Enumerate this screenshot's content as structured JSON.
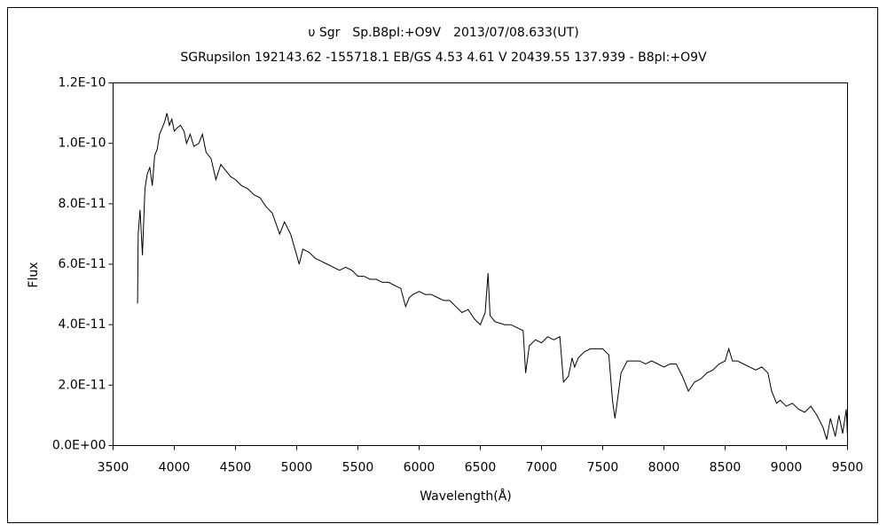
{
  "chart_data": {
    "type": "line",
    "title": "υ Sgr　Sp.B8pI:+O9V　2013/07/08.633(UT)",
    "subtitle": "SGRupsilon 192143.62 -155718.1 EB/GS 4.53 4.61 V 20439.55 137.939 - B8pI:+O9V",
    "xlabel": "Wavelength(Å)",
    "ylabel": "Flux",
    "color": "#000000",
    "grid": false,
    "xlim": [
      3500,
      9500
    ],
    "xticks": [
      3500,
      4000,
      4500,
      5000,
      5500,
      6000,
      6500,
      7000,
      7500,
      8000,
      8500,
      9000,
      9500
    ],
    "ylim": [
      0,
      1.2e-10
    ],
    "yticks": [
      {
        "value": 0,
        "label": "0.0E+00"
      },
      {
        "value": 2e-11,
        "label": "2.0E-11"
      },
      {
        "value": 4e-11,
        "label": "4.0E-11"
      },
      {
        "value": 6e-11,
        "label": "6.0E-11"
      },
      {
        "value": 8e-11,
        "label": "8.0E-11"
      },
      {
        "value": 1e-10,
        "label": "1.0E-10"
      },
      {
        "value": 1.2e-10,
        "label": "1.2E-10"
      }
    ],
    "x": [
      3700,
      3705,
      3720,
      3740,
      3760,
      3780,
      3800,
      3820,
      3840,
      3860,
      3880,
      3900,
      3920,
      3940,
      3960,
      3980,
      4000,
      4020,
      4050,
      4080,
      4100,
      4130,
      4160,
      4200,
      4230,
      4260,
      4300,
      4340,
      4380,
      4420,
      4460,
      4500,
      4550,
      4600,
      4650,
      4700,
      4750,
      4800,
      4861,
      4900,
      4950,
      5000,
      5020,
      5050,
      5100,
      5150,
      5200,
      5250,
      5300,
      5350,
      5400,
      5450,
      5500,
      5550,
      5600,
      5650,
      5700,
      5750,
      5800,
      5850,
      5890,
      5920,
      5950,
      6000,
      6050,
      6100,
      6150,
      6200,
      6250,
      6300,
      6350,
      6400,
      6450,
      6500,
      6540,
      6563,
      6580,
      6620,
      6700,
      6750,
      6800,
      6850,
      6870,
      6900,
      6950,
      7000,
      7050,
      7100,
      7150,
      7180,
      7220,
      7250,
      7270,
      7300,
      7350,
      7400,
      7450,
      7500,
      7550,
      7580,
      7600,
      7620,
      7650,
      7700,
      7750,
      7800,
      7850,
      7900,
      7950,
      8000,
      8050,
      8100,
      8150,
      8200,
      8250,
      8300,
      8350,
      8400,
      8450,
      8500,
      8530,
      8560,
      8600,
      8650,
      8700,
      8750,
      8800,
      8850,
      8880,
      8920,
      8950,
      9000,
      9050,
      9100,
      9150,
      9200,
      9250,
      9300,
      9330,
      9360,
      9400,
      9430,
      9460,
      9490,
      9500
    ],
    "values": [
      4.7e-11,
      7e-11,
      7.8e-11,
      6.3e-11,
      8.5e-11,
      9e-11,
      9.2e-11,
      8.6e-11,
      9.6e-11,
      9.8e-11,
      1.03e-10,
      1.05e-10,
      1.07e-10,
      1.1e-10,
      1.06e-10,
      1.08e-10,
      1.04e-10,
      1.05e-10,
      1.06e-10,
      1.04e-10,
      1e-10,
      1.03e-10,
      9.9e-11,
      1e-10,
      1.03e-10,
      9.7e-11,
      9.5e-11,
      8.8e-11,
      9.3e-11,
      9.1e-11,
      8.9e-11,
      8.8e-11,
      8.6e-11,
      8.5e-11,
      8.3e-11,
      8.2e-11,
      7.9e-11,
      7.7e-11,
      7e-11,
      7.4e-11,
      7e-11,
      6.3e-11,
      6e-11,
      6.5e-11,
      6.4e-11,
      6.2e-11,
      6.1e-11,
      6e-11,
      5.9e-11,
      5.8e-11,
      5.9e-11,
      5.8e-11,
      5.6e-11,
      5.6e-11,
      5.5e-11,
      5.5e-11,
      5.4e-11,
      5.4e-11,
      5.3e-11,
      5.2e-11,
      4.6e-11,
      4.9e-11,
      5e-11,
      5.1e-11,
      5e-11,
      5e-11,
      4.9e-11,
      4.8e-11,
      4.8e-11,
      4.6e-11,
      4.4e-11,
      4.5e-11,
      4.2e-11,
      4e-11,
      4.4e-11,
      5.7e-11,
      4.3e-11,
      4.1e-11,
      4e-11,
      4e-11,
      3.9e-11,
      3.8e-11,
      2.4e-11,
      3.3e-11,
      3.5e-11,
      3.4e-11,
      3.6e-11,
      3.5e-11,
      3.6e-11,
      2.1e-11,
      2.3e-11,
      2.9e-11,
      2.6e-11,
      2.9e-11,
      3.1e-11,
      3.2e-11,
      3.2e-11,
      3.2e-11,
      3e-11,
      1.5e-11,
      9e-12,
      1.5e-11,
      2.4e-11,
      2.8e-11,
      2.8e-11,
      2.8e-11,
      2.7e-11,
      2.8e-11,
      2.7e-11,
      2.6e-11,
      2.7e-11,
      2.7e-11,
      2.3e-11,
      1.8e-11,
      2.1e-11,
      2.2e-11,
      2.4e-11,
      2.5e-11,
      2.7e-11,
      2.8e-11,
      3.2e-11,
      2.8e-11,
      2.8e-11,
      2.7e-11,
      2.6e-11,
      2.5e-11,
      2.6e-11,
      2.4e-11,
      1.8e-11,
      1.4e-11,
      1.5e-11,
      1.3e-11,
      1.4e-11,
      1.2e-11,
      1.1e-11,
      1.3e-11,
      1e-11,
      6e-12,
      2e-12,
      9e-12,
      3e-12,
      1e-11,
      4e-12,
      1.2e-11,
      3e-12
    ]
  }
}
